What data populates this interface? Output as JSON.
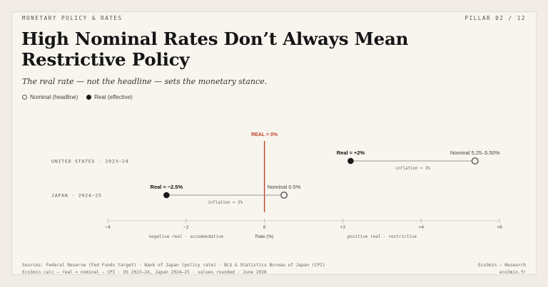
{
  "header": {
    "kicker": "MONETARY POLICY & RATES",
    "pillar": "PILLAR 02 / 12"
  },
  "title": "High Nominal Rates Don’t Always Mean Restrictive Policy",
  "subtitle": "The real rate — not the headline — sets the monetary stance.",
  "legend": {
    "nominal": "Nominal (headline)",
    "real": "Real (effective)"
  },
  "chart_data": {
    "type": "dumbbell",
    "xlabel": "Rate (%)",
    "xlim": [
      -4,
      6
    ],
    "ticks": [
      -4,
      -2,
      0,
      2,
      4,
      6
    ],
    "tick_labels": [
      "−4",
      "−2",
      "0",
      "+2",
      "+4",
      "+6"
    ],
    "zero_line_label": "REAL = 0%",
    "zone_labels": {
      "negative": "negative real · accommodative",
      "positive": "positive real · restrictive"
    },
    "series": [
      {
        "country": "UNITED STATES · 2023–24",
        "nominal": 5.375,
        "real": 2.2,
        "nominal_label": "Nominal 5.25–5.50%",
        "real_label": "Real ≈ +2%",
        "inflation_label": "inflation ≈ 3%"
      },
      {
        "country": "JAPAN · 2024–25",
        "nominal": 0.5,
        "real": -2.5,
        "nominal_label": "Nominal 0.5%",
        "real_label": "Real ≈ −2.5%",
        "inflation_label": "inflation ≈ 3%"
      }
    ],
    "colors": {
      "zero_line": "#c0442a",
      "connector": "#9a9590",
      "real_dot": "#1a1a1a",
      "nominal_dot_stroke": "#555555"
    }
  },
  "footer": {
    "sources": "Sources: Federal Reserve (Fed Funds target) · Bank of Japan (policy rate) · BLS & Statistics Bureau of Japan (CPI)",
    "calc": "Eco3min calc — real ≈ nominal − CPI · US 2023–24, Japan 2024–25 · values rounded · June 2026",
    "brand": "Eco3min — Research",
    "site": "eco3min.fr"
  }
}
